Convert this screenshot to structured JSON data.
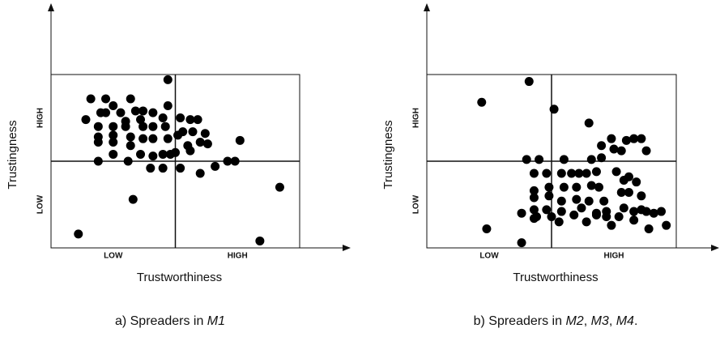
{
  "chart_data": [
    {
      "type": "scatter",
      "x_label": "Trustworthiness",
      "y_label": "Trustingness",
      "x_categories": [
        "LOW",
        "HIGH"
      ],
      "y_categories": [
        "LOW",
        "HIGH"
      ],
      "caption": [
        {
          "text": "a) Spreaders in "
        },
        {
          "text": "M1",
          "italic": true
        }
      ],
      "color": "#000000",
      "xlim": [
        0,
        1
      ],
      "ylim": [
        0,
        1
      ],
      "x": [
        0.47,
        0.16,
        0.22,
        0.32,
        0.47,
        0.2,
        0.25,
        0.22,
        0.28,
        0.34,
        0.37,
        0.41,
        0.14,
        0.19,
        0.25,
        0.3,
        0.36,
        0.45,
        0.52,
        0.56,
        0.59,
        0.19,
        0.25,
        0.3,
        0.37,
        0.41,
        0.46,
        0.53,
        0.57,
        0.62,
        0.19,
        0.25,
        0.32,
        0.37,
        0.41,
        0.47,
        0.51,
        0.55,
        0.6,
        0.63,
        0.76,
        0.25,
        0.32,
        0.36,
        0.41,
        0.45,
        0.48,
        0.5,
        0.56,
        0.19,
        0.31,
        0.4,
        0.45,
        0.52,
        0.6,
        0.66,
        0.71,
        0.74,
        0.92,
        0.33,
        0.11,
        0.84
      ],
      "values": [
        0.97,
        0.86,
        0.86,
        0.86,
        0.82,
        0.78,
        0.82,
        0.78,
        0.78,
        0.79,
        0.79,
        0.78,
        0.74,
        0.7,
        0.7,
        0.73,
        0.74,
        0.75,
        0.75,
        0.74,
        0.74,
        0.64,
        0.65,
        0.7,
        0.7,
        0.7,
        0.7,
        0.67,
        0.67,
        0.66,
        0.61,
        0.61,
        0.64,
        0.63,
        0.63,
        0.63,
        0.65,
        0.59,
        0.61,
        0.6,
        0.62,
        0.54,
        0.59,
        0.54,
        0.53,
        0.54,
        0.54,
        0.55,
        0.56,
        0.5,
        0.5,
        0.46,
        0.46,
        0.46,
        0.43,
        0.47,
        0.5,
        0.5,
        0.35,
        0.28,
        0.08,
        0.04
      ]
    },
    {
      "type": "scatter",
      "x_label": "Trustworthiness",
      "y_label": "Trustingness",
      "x_categories": [
        "LOW",
        "HIGH"
      ],
      "y_categories": [
        "LOW",
        "HIGH"
      ],
      "caption": [
        {
          "text": "b) Spreaders in "
        },
        {
          "text": "M2",
          "italic": true
        },
        {
          "text": ", "
        },
        {
          "text": "M3",
          "italic": true
        },
        {
          "text": ", "
        },
        {
          "text": "M4",
          "italic": true
        },
        {
          "text": "."
        }
      ],
      "color": "#000000",
      "xlim": [
        0,
        1
      ],
      "ylim": [
        0,
        1
      ],
      "x": [
        0.41,
        0.22,
        0.51,
        0.65,
        0.74,
        0.8,
        0.83,
        0.86,
        0.7,
        0.75,
        0.78,
        0.88,
        0.4,
        0.45,
        0.55,
        0.66,
        0.7,
        0.43,
        0.48,
        0.54,
        0.58,
        0.61,
        0.64,
        0.68,
        0.76,
        0.81,
        0.43,
        0.49,
        0.55,
        0.6,
        0.66,
        0.69,
        0.79,
        0.84,
        0.43,
        0.49,
        0.54,
        0.6,
        0.65,
        0.71,
        0.78,
        0.81,
        0.86,
        0.43,
        0.48,
        0.54,
        0.62,
        0.68,
        0.72,
        0.79,
        0.86,
        0.44,
        0.5,
        0.59,
        0.68,
        0.72,
        0.77,
        0.83,
        0.88,
        0.91,
        0.94,
        0.38,
        0.43,
        0.53,
        0.64,
        0.74,
        0.83,
        0.96,
        0.89,
        0.24,
        0.38
      ],
      "values": [
        0.96,
        0.84,
        0.8,
        0.72,
        0.63,
        0.62,
        0.63,
        0.63,
        0.59,
        0.57,
        0.56,
        0.56,
        0.51,
        0.51,
        0.51,
        0.51,
        0.52,
        0.43,
        0.43,
        0.43,
        0.43,
        0.43,
        0.43,
        0.44,
        0.44,
        0.41,
        0.33,
        0.35,
        0.35,
        0.35,
        0.36,
        0.35,
        0.39,
        0.38,
        0.29,
        0.3,
        0.27,
        0.28,
        0.27,
        0.27,
        0.32,
        0.32,
        0.3,
        0.22,
        0.22,
        0.21,
        0.23,
        0.2,
        0.21,
        0.23,
        0.22,
        0.18,
        0.18,
        0.19,
        0.19,
        0.18,
        0.18,
        0.21,
        0.21,
        0.2,
        0.21,
        0.2,
        0.17,
        0.15,
        0.15,
        0.13,
        0.16,
        0.13,
        0.11,
        0.11,
        0.03
      ]
    }
  ]
}
